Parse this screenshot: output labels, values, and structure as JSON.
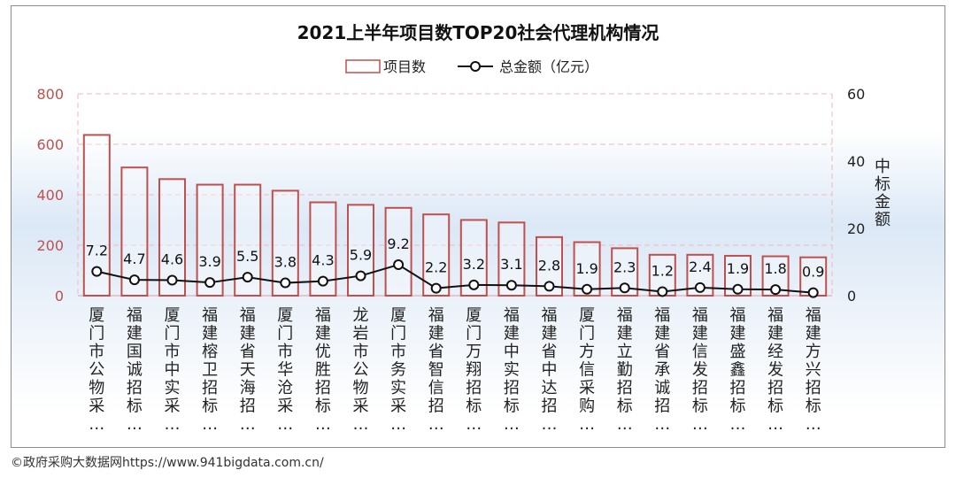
{
  "colors": {
    "bar_stroke": "#c0504d",
    "line": "#111111",
    "left_axis_text": "#c0504d",
    "grid": "#f2b8b8"
  },
  "source_note": "©政府采购大数据网https://www.941bigdata.com.cn/",
  "chart_data": {
    "type": "bar",
    "title": "2021上半年项目数TOP20社会代理机构情况",
    "legend": [
      {
        "name": "项目数",
        "kind": "bar"
      },
      {
        "name": "总金额（亿元）",
        "kind": "line"
      }
    ],
    "left_axis": {
      "ticks": [
        "800",
        "600",
        "400",
        "200",
        "0"
      ],
      "range": [
        0,
        800
      ]
    },
    "right_axis": {
      "ticks": [
        "60",
        "40",
        "20",
        "0"
      ],
      "range": [
        0,
        60
      ],
      "label": [
        "中",
        "标",
        "金",
        "额"
      ]
    },
    "categories": [
      [
        "厦",
        "门",
        "市",
        "公",
        "物",
        "采",
        "…"
      ],
      [
        "福",
        "建",
        "国",
        "诚",
        "招",
        "标",
        "…"
      ],
      [
        "厦",
        "门",
        "市",
        "中",
        "实",
        "采",
        "…"
      ],
      [
        "福",
        "建",
        "榕",
        "卫",
        "招",
        "标",
        "…"
      ],
      [
        "福",
        "建",
        "省",
        "天",
        "海",
        "招",
        "…"
      ],
      [
        "厦",
        "门",
        "市",
        "华",
        "沧",
        "采",
        "…"
      ],
      [
        "福",
        "建",
        "优",
        "胜",
        "招",
        "标",
        "…"
      ],
      [
        "龙",
        "岩",
        "市",
        "公",
        "物",
        "采",
        "…"
      ],
      [
        "厦",
        "门",
        "市",
        "务",
        "实",
        "采",
        "…"
      ],
      [
        "福",
        "建",
        "省",
        "智",
        "信",
        "招",
        "…"
      ],
      [
        "厦",
        "门",
        "万",
        "翔",
        "招",
        "标",
        "…"
      ],
      [
        "福",
        "建",
        "中",
        "实",
        "招",
        "标",
        "…"
      ],
      [
        "福",
        "建",
        "省",
        "中",
        "达",
        "招",
        "…"
      ],
      [
        "厦",
        "门",
        "方",
        "信",
        "采",
        "购",
        "…"
      ],
      [
        "福",
        "建",
        "立",
        "勤",
        "招",
        "标",
        "…"
      ],
      [
        "福",
        "建",
        "省",
        "承",
        "诚",
        "招",
        "…"
      ],
      [
        "福",
        "建",
        "信",
        "发",
        "招",
        "标",
        "…"
      ],
      [
        "福",
        "建",
        "盛",
        "鑫",
        "招",
        "标",
        "…"
      ],
      [
        "福",
        "建",
        "经",
        "发",
        "招",
        "标",
        "…"
      ],
      [
        "福",
        "建",
        "方",
        "兴",
        "招",
        "标",
        "…"
      ]
    ],
    "series": [
      {
        "name": "项目数",
        "axis": "left",
        "values": [
          637,
          508,
          462,
          440,
          440,
          416,
          370,
          360,
          348,
          322,
          300,
          290,
          232,
          212,
          188,
          162,
          162,
          158,
          156,
          152
        ]
      },
      {
        "name": "总金额（亿元）",
        "axis": "right",
        "values": [
          7.2,
          4.7,
          4.6,
          3.9,
          5.5,
          3.8,
          4.3,
          5.9,
          9.2,
          2.2,
          3.2,
          3.1,
          2.8,
          1.9,
          2.3,
          1.2,
          2.4,
          1.9,
          1.8,
          0.9
        ],
        "labels": [
          "7.2",
          "4.7",
          "4.6",
          "3.9",
          "5.5",
          "3.8",
          "4.3",
          "5.9",
          "9.2",
          "2.2",
          "3.2",
          "3.1",
          "2.8",
          "1.9",
          "2.3",
          "1.2",
          "2.4",
          "1.9",
          "1.8",
          "0.9"
        ]
      }
    ]
  }
}
